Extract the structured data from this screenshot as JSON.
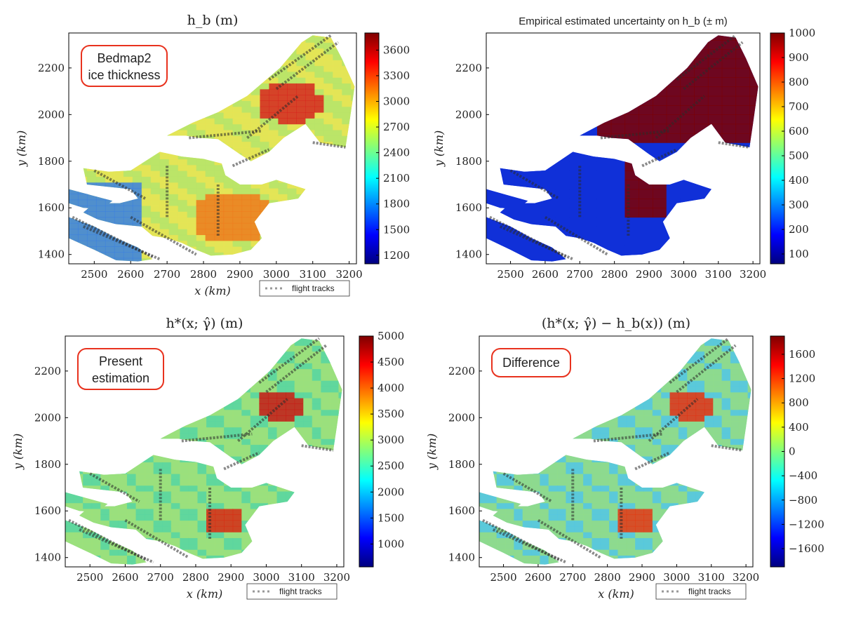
{
  "x_axis_label": "x (km)",
  "y_axis_label": "y (km)",
  "legend_label": "flight tracks",
  "colormap": [
    "#00007f",
    "#0000ff",
    "#007fff",
    "#00ffff",
    "#7fff7f",
    "#ffff00",
    "#ff7f00",
    "#ff0000",
    "#7f0000"
  ],
  "track_color": "#2b2b2b",
  "annotation_border_color": "#e8321e",
  "chart_data": [
    {
      "type": "heatmap",
      "title": "h_b (m)",
      "xlabel": "x (km)",
      "ylabel": "y (km)",
      "xlim": [
        2430,
        3220
      ],
      "ylim": [
        1360,
        2350
      ],
      "xticks": [
        2500,
        2600,
        2700,
        2800,
        2900,
        3000,
        3100,
        3200
      ],
      "yticks": [
        1400,
        1600,
        1800,
        2000,
        2200
      ],
      "colorbar": {
        "range": [
          1100,
          3800
        ],
        "ticks": [
          1200,
          1500,
          1800,
          2100,
          2400,
          2700,
          3000,
          3300,
          3600
        ]
      },
      "annotation": [
        "Bedmap2",
        "ice thickness"
      ],
      "legend": "flight tracks"
    },
    {
      "type": "heatmap",
      "title": "Empirical estimated uncertainty on h_b (± m)",
      "xlabel": "",
      "ylabel": "y (km)",
      "xlim": [
        2430,
        3220
      ],
      "ylim": [
        1360,
        2350
      ],
      "xticks": [
        2500,
        2600,
        2700,
        2800,
        2900,
        3000,
        3100,
        3200
      ],
      "yticks": [
        1400,
        1600,
        1800,
        2000,
        2200
      ],
      "colorbar": {
        "range": [
          60,
          1000
        ],
        "ticks": [
          100,
          200,
          300,
          400,
          500,
          600,
          700,
          800,
          900,
          1000
        ]
      },
      "annotation": [],
      "legend": ""
    },
    {
      "type": "heatmap",
      "title": "h*(x; γ̂) (m)",
      "xlabel": "x (km)",
      "ylabel": "y (km)",
      "xlim": [
        2430,
        3220
      ],
      "ylim": [
        1360,
        2350
      ],
      "xticks": [
        2500,
        2600,
        2700,
        2800,
        2900,
        3000,
        3100,
        3200
      ],
      "yticks": [
        1400,
        1600,
        1800,
        2000,
        2200
      ],
      "colorbar": {
        "range": [
          560,
          5000
        ],
        "ticks": [
          1000,
          1500,
          2000,
          2500,
          3000,
          3500,
          4000,
          4500,
          5000
        ]
      },
      "annotation": [
        "Present",
        "estimation"
      ],
      "legend": "flight tracks"
    },
    {
      "type": "heatmap",
      "title": "(h*(x; γ̂) − h_b(x)) (m)",
      "xlabel": "x (km)",
      "ylabel": "y (km)",
      "xlim": [
        2430,
        3220
      ],
      "ylim": [
        1360,
        2350
      ],
      "xticks": [
        2500,
        2600,
        2700,
        2800,
        2900,
        3000,
        3100,
        3200
      ],
      "yticks": [
        1400,
        1600,
        1800,
        2000,
        2200
      ],
      "colorbar": {
        "range": [
          -1900,
          1900
        ],
        "ticks": [
          1600,
          1200,
          800,
          400,
          0,
          -400,
          -800,
          -1200,
          -1600
        ]
      },
      "annotation": [
        "Difference"
      ],
      "legend": "flight tracks"
    }
  ]
}
